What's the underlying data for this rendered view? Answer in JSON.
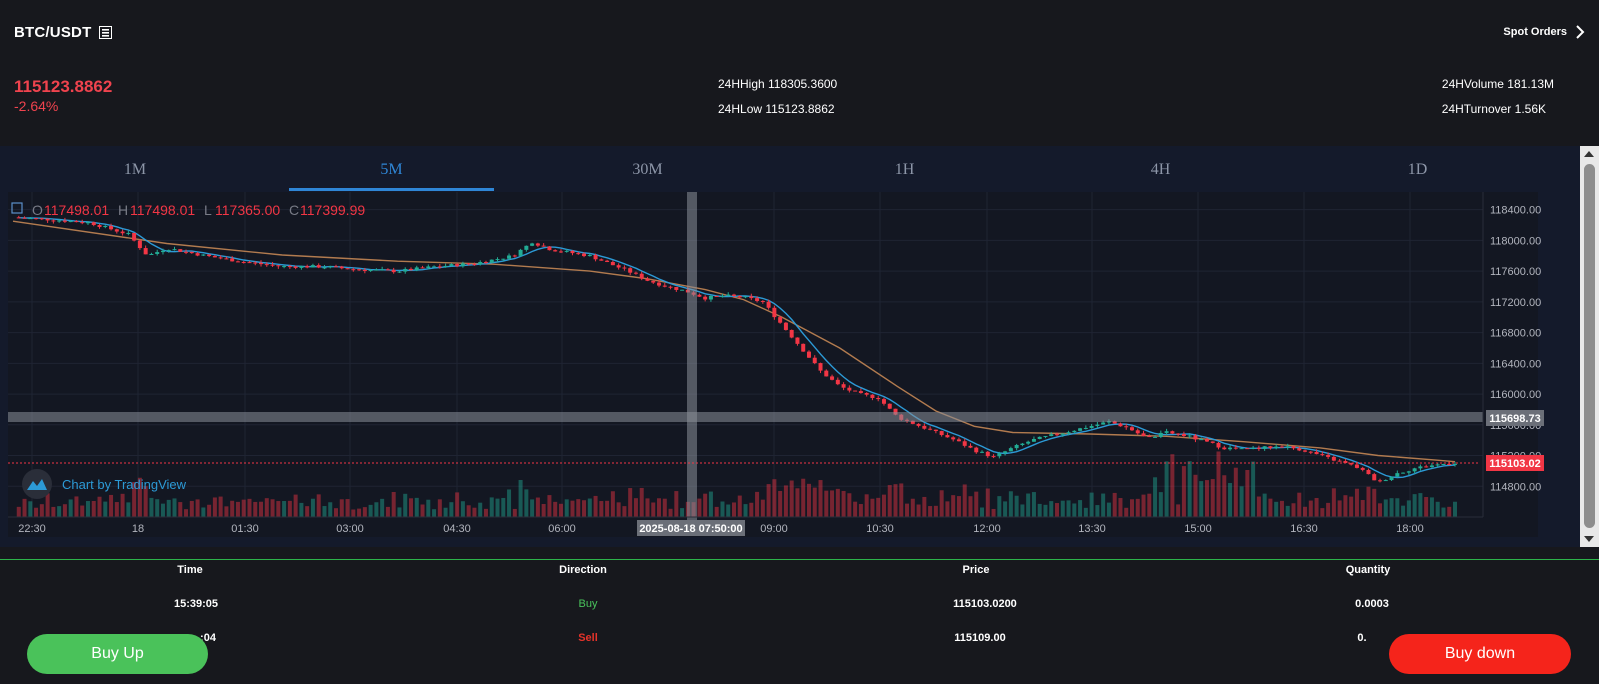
{
  "header": {
    "pair": "BTC/USDT",
    "spot_orders": "Spot Orders",
    "last_price": "115123.8862",
    "change": "-2.64%",
    "high_24h": "24HHigh 118305.3600",
    "low_24h": "24HLow 115123.8862",
    "volume_24h": "24HVolume 181.13M",
    "turnover_24h": "24HTurnover 1.56K"
  },
  "tabs": [
    "1M",
    "5M",
    "30M",
    "1H",
    "4H",
    "1D"
  ],
  "active_tab": "5M",
  "chart": {
    "ohlc": {
      "o_label": "O",
      "o": "117498.01",
      "h_label": "H",
      "h": "117498.01",
      "l_label": "L",
      "l": "117365.00",
      "c_label": "C",
      "c": "117399.99"
    },
    "watermark": "Chart by TradingView",
    "crosshair_time": "2025-08-18 07:50:00",
    "crosshair_price": "115698.73",
    "last_price_label": "115103.02"
  },
  "chart_data": {
    "type": "candlestick",
    "y_ticks": [
      "118400.00",
      "118000.00",
      "117600.00",
      "117200.00",
      "116800.00",
      "116400.00",
      "116000.00",
      "115600.00",
      "115200.00",
      "114800.00"
    ],
    "y_range": [
      114400,
      118500
    ],
    "x_ticks": [
      "22:30",
      "18",
      "01:30",
      "03:00",
      "04:30",
      "06:00",
      "09:00",
      "10:30",
      "12:00",
      "13:30",
      "15:00",
      "16:30",
      "18:00"
    ],
    "close_path": [
      [
        0,
        118300
      ],
      [
        20,
        118270
      ],
      [
        40,
        118230
      ],
      [
        60,
        118080
      ],
      [
        70,
        117800
      ],
      [
        80,
        117900
      ],
      [
        100,
        117800
      ],
      [
        120,
        117720
      ],
      [
        140,
        117660
      ],
      [
        160,
        117660
      ],
      [
        180,
        117620
      ],
      [
        200,
        117600
      ],
      [
        220,
        117660
      ],
      [
        240,
        117700
      ],
      [
        260,
        117800
      ],
      [
        270,
        117980
      ],
      [
        280,
        117880
      ],
      [
        300,
        117800
      ],
      [
        320,
        117600
      ],
      [
        330,
        117480
      ],
      [
        340,
        117400
      ],
      [
        350,
        117340
      ],
      [
        360,
        117250
      ],
      [
        370,
        117280
      ],
      [
        380,
        117260
      ],
      [
        390,
        117200
      ],
      [
        400,
        116900
      ],
      [
        410,
        116600
      ],
      [
        420,
        116300
      ],
      [
        430,
        116100
      ],
      [
        440,
        116000
      ],
      [
        450,
        115950
      ],
      [
        460,
        115700
      ],
      [
        470,
        115600
      ],
      [
        480,
        115500
      ],
      [
        490,
        115400
      ],
      [
        500,
        115270
      ],
      [
        510,
        115180
      ],
      [
        520,
        115300
      ],
      [
        530,
        115400
      ],
      [
        540,
        115460
      ],
      [
        550,
        115520
      ],
      [
        560,
        115580
      ],
      [
        570,
        115640
      ],
      [
        580,
        115560
      ],
      [
        590,
        115420
      ],
      [
        600,
        115500
      ],
      [
        610,
        115460
      ],
      [
        620,
        115380
      ],
      [
        630,
        115300
      ],
      [
        640,
        115280
      ],
      [
        650,
        115300
      ],
      [
        660,
        115320
      ],
      [
        670,
        115280
      ],
      [
        680,
        115200
      ],
      [
        690,
        115120
      ],
      [
        700,
        115040
      ],
      [
        710,
        114850
      ],
      [
        720,
        114970
      ],
      [
        730,
        115040
      ],
      [
        740,
        115080
      ],
      [
        750,
        115103
      ]
    ],
    "ma_slow_path": [
      [
        0,
        118250
      ],
      [
        80,
        117960
      ],
      [
        140,
        117810
      ],
      [
        200,
        117730
      ],
      [
        250,
        117690
      ],
      [
        300,
        117600
      ],
      [
        330,
        117500
      ],
      [
        360,
        117360
      ],
      [
        380,
        117230
      ],
      [
        400,
        117000
      ],
      [
        430,
        116600
      ],
      [
        460,
        116100
      ],
      [
        480,
        115780
      ],
      [
        500,
        115580
      ],
      [
        520,
        115500
      ],
      [
        560,
        115480
      ],
      [
        600,
        115450
      ],
      [
        640,
        115380
      ],
      [
        680,
        115300
      ],
      [
        710,
        115200
      ],
      [
        740,
        115140
      ],
      [
        750,
        115120
      ]
    ]
  },
  "trades": {
    "headers": [
      "Time",
      "Direction",
      "Price",
      "Quantity"
    ],
    "rows": [
      {
        "time": "15:39:05",
        "direction": "Buy",
        "price": "115103.0200",
        "qty": "0.0003"
      },
      {
        "time": ":04",
        "direction": "Sell",
        "price": "115109.00",
        "qty": "0."
      }
    ]
  },
  "buttons": {
    "buy_up": "Buy Up",
    "buy_down": "Buy down"
  },
  "colors": {
    "up": "#22ab94",
    "down": "#f23645",
    "accent": "#2f86d6",
    "ma_fast": "#2c9ad6",
    "ma_slow": "#b27b4f"
  }
}
